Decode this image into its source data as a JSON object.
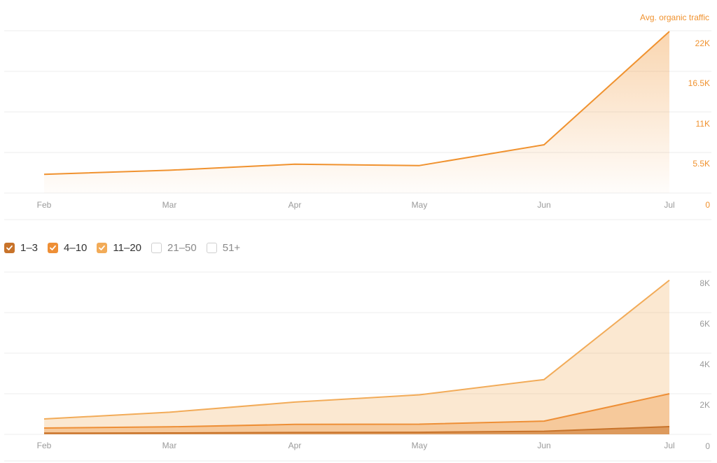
{
  "colors": {
    "traffic": "#f0922f",
    "pos_1_3": "#c8732a",
    "pos_4_10": "#ee8f36",
    "pos_11_20": "#f2ab58",
    "grid": "#ececec",
    "axis_text": "#9a9a9a",
    "traffic_axis_text": "#f0922f"
  },
  "legend": {
    "items": [
      {
        "label": "1–3",
        "checked": true,
        "color": "#c8732a"
      },
      {
        "label": "4–10",
        "checked": true,
        "color": "#ee8f36"
      },
      {
        "label": "11–20",
        "checked": true,
        "color": "#f2ab58"
      },
      {
        "label": "21–50",
        "checked": false,
        "color": ""
      },
      {
        "label": "51+",
        "checked": false,
        "color": ""
      }
    ]
  },
  "chart_data": [
    {
      "type": "area",
      "categories": [
        "Feb",
        "Mar",
        "Apr",
        "May",
        "Jun",
        "Jul"
      ],
      "ylabel": "Avg. organic traffic",
      "yticks": [
        "0",
        "5.5K",
        "11K",
        "16.5K",
        "22K"
      ],
      "ylim": [
        0,
        24200
      ],
      "grid": true,
      "series": [
        {
          "name": "Avg. organic traffic",
          "values": [
            2800,
            3400,
            4300,
            4100,
            7200,
            24100
          ]
        }
      ]
    },
    {
      "type": "area",
      "categories": [
        "Feb",
        "Mar",
        "Apr",
        "May",
        "Jun",
        "Jul"
      ],
      "yticks": [
        "0",
        "2K",
        "4K",
        "6K",
        "8K"
      ],
      "ylim": [
        0,
        8000
      ],
      "grid": true,
      "stacked": true,
      "series": [
        {
          "name": "1–3",
          "values": [
            60,
            70,
            90,
            100,
            150,
            380
          ]
        },
        {
          "name": "4–10",
          "values": [
            250,
            300,
            400,
            400,
            500,
            1620
          ]
        },
        {
          "name": "11–20",
          "values": [
            450,
            720,
            1100,
            1450,
            2050,
            5600
          ]
        }
      ]
    }
  ]
}
